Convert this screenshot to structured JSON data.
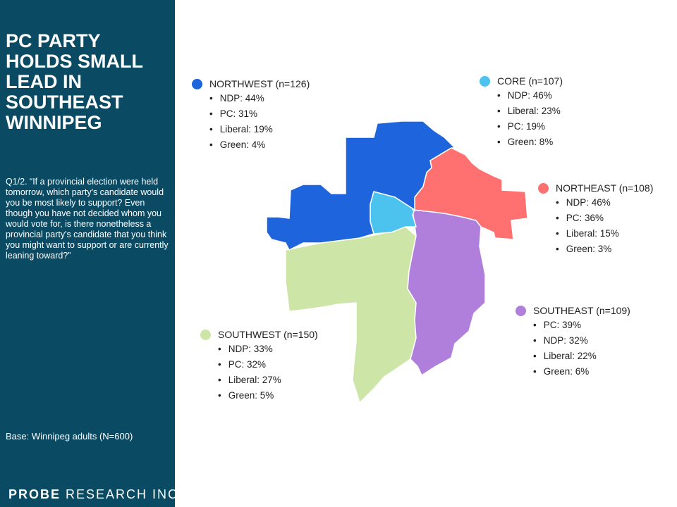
{
  "sidebar": {
    "title": "PC PARTY HOLDS SMALL LEAD IN SOUTHEAST WINNIPEG",
    "question": "Q1/2. “If a provincial election were held tomorrow, which party's candidate would you be most likely to support? Even though you have not decided whom you would vote for, is there nonetheless a provincial party's candidate that you think you might want to support or are currently leaning toward?”",
    "base": "Base: Winnipeg adults (N=600)",
    "logo_brand": "PROBE",
    "logo_rest": " RESEARCH INC."
  },
  "regions": {
    "northwest": {
      "label": "NORTHWEST (n=126)",
      "color": "#1e64dc",
      "items": [
        "NDP: 44%",
        "PC: 31%",
        "Liberal: 19%",
        "Green: 4%"
      ]
    },
    "core": {
      "label": "CORE (n=107)",
      "color": "#4cc2ef",
      "items": [
        "NDP: 46%",
        "Liberal: 23%",
        "PC: 19%",
        "Green: 8%"
      ]
    },
    "northeast": {
      "label": "NORTHEAST (n=108)",
      "color": "#ff7070",
      "items": [
        "NDP: 46%",
        "PC: 36%",
        "Liberal: 15%",
        "Green: 3%"
      ]
    },
    "southeast": {
      "label": "SOUTHEAST (n=109)",
      "color": "#b07fdb",
      "items": [
        "PC: 39%",
        "NDP: 32%",
        "Liberal: 22%",
        "Green: 6%"
      ]
    },
    "southwest": {
      "label": "SOUTHWEST (n=150)",
      "color": "#cde6a8",
      "items": [
        "NDP: 33%",
        "PC: 32%",
        "Liberal: 27%",
        "Green: 5%"
      ]
    }
  }
}
